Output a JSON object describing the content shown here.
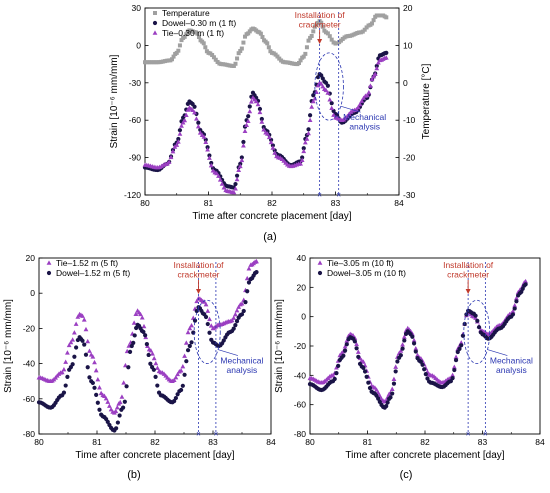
{
  "colors": {
    "temperature": "#a0a0a0",
    "dowel": "#1a1447",
    "tie": "#9b3fc2",
    "installation": "#c0392b",
    "mechanical": "#2a36b1"
  },
  "chart_data": [
    {
      "panel": "(a)",
      "type": "line",
      "xlabel": "Time after concrete placement [day]",
      "ylabel": "Strain [10⁻⁶ mm/mm]",
      "y2label": "Temperature [°C]",
      "xlim": [
        80,
        84
      ],
      "ylim": [
        -120,
        30
      ],
      "y2lim": [
        -30,
        20
      ],
      "xticks": [
        "80",
        "81",
        "82",
        "83",
        "84"
      ],
      "yticks": [
        "-120",
        "-90",
        "-60",
        "-30",
        "0",
        "30"
      ],
      "y2ticks": [
        "-30",
        "-20",
        "-10",
        "0",
        "10",
        "20"
      ],
      "legend": "top-left",
      "annotations": {
        "installation": "Installation of\ncrackmeter",
        "mechanical": "Mechanical\nanalysis"
      },
      "marker_lines_x": [
        82.75,
        83.05
      ],
      "series": [
        {
          "name": "Temperature",
          "axis": "right",
          "color": "#a0a0a0",
          "marker": "square",
          "x": [
            80.0,
            80.2,
            80.4,
            80.5,
            80.6,
            80.7,
            80.8,
            80.9,
            81.0,
            81.2,
            81.4,
            81.5,
            81.6,
            81.7,
            81.8,
            81.9,
            82.0,
            82.2,
            82.4,
            82.5,
            82.6,
            82.7,
            82.75,
            82.85,
            83.0,
            83.2,
            83.4,
            83.55,
            83.65,
            83.75,
            83.8
          ],
          "y": [
            5.5,
            5.5,
            6.0,
            8.0,
            12.0,
            14.0,
            13.5,
            11.0,
            8.0,
            5.0,
            4.5,
            8.5,
            13.0,
            14.5,
            13.5,
            11.0,
            8.0,
            5.5,
            5.0,
            7.0,
            12.0,
            15.5,
            16.5,
            13.5,
            10.5,
            12.5,
            13.5,
            15.5,
            18.0,
            18.0,
            17.5
          ]
        },
        {
          "name": "Dowel–0.30 m (1 ft)",
          "axis": "left",
          "color": "#1a1447",
          "marker": "circle",
          "x": [
            80.0,
            80.2,
            80.35,
            80.5,
            80.6,
            80.7,
            80.75,
            80.9,
            81.1,
            81.3,
            81.4,
            81.5,
            81.6,
            81.7,
            81.75,
            81.9,
            82.1,
            82.3,
            82.45,
            82.55,
            82.65,
            82.75,
            82.85,
            83.0,
            83.1,
            83.3,
            83.5,
            83.6,
            83.7,
            83.8
          ],
          "y": [
            -98,
            -100,
            -95,
            -78,
            -58,
            -45,
            -47,
            -70,
            -100,
            -113,
            -114,
            -95,
            -60,
            -38,
            -42,
            -68,
            -88,
            -96,
            -93,
            -72,
            -40,
            -23,
            -30,
            -55,
            -62,
            -54,
            -42,
            -25,
            -8,
            -6
          ]
        },
        {
          "name": "Tie–0.30 m (1 ft)",
          "axis": "left",
          "color": "#9b3fc2",
          "marker": "triangle",
          "x": [
            80.0,
            80.2,
            80.35,
            80.5,
            80.6,
            80.7,
            80.75,
            80.9,
            81.1,
            81.3,
            81.4,
            81.5,
            81.6,
            81.7,
            81.75,
            81.9,
            82.1,
            82.3,
            82.45,
            82.55,
            82.65,
            82.75,
            82.85,
            83.0,
            83.1,
            83.3,
            83.5,
            83.6,
            83.7,
            83.8
          ],
          "y": [
            -96,
            -98,
            -95,
            -80,
            -62,
            -50,
            -52,
            -72,
            -102,
            -117,
            -118,
            -97,
            -64,
            -42,
            -45,
            -70,
            -90,
            -97,
            -95,
            -75,
            -45,
            -30,
            -36,
            -58,
            -60,
            -52,
            -40,
            -25,
            -12,
            -10
          ]
        }
      ]
    },
    {
      "panel": "(b)",
      "type": "line",
      "xlabel": "Time after concrete placement [day]",
      "ylabel": "Strain [10⁻⁶ mm/mm]",
      "xlim": [
        80,
        84
      ],
      "ylim": [
        -80,
        20
      ],
      "xticks": [
        "80",
        "81",
        "82",
        "83",
        "84"
      ],
      "yticks": [
        "-80",
        "-60",
        "-40",
        "-20",
        "0",
        "20"
      ],
      "legend": "top-left",
      "annotations": {
        "installation": "Installation of\ncrackmeter",
        "mechanical": "Mechanical\nanalysis"
      },
      "marker_lines_x": [
        82.75,
        83.05
      ],
      "series": [
        {
          "name": "Tie–1.52 m (5 ft)",
          "color": "#9b3fc2",
          "marker": "triangle",
          "x": [
            80.0,
            80.2,
            80.4,
            80.55,
            80.7,
            80.75,
            80.9,
            81.1,
            81.3,
            81.4,
            81.55,
            81.7,
            81.75,
            81.9,
            82.1,
            82.3,
            82.45,
            82.6,
            82.75,
            82.85,
            83.0,
            83.1,
            83.3,
            83.5,
            83.65,
            83.75
          ],
          "y": [
            -48,
            -50,
            -45,
            -28,
            -12,
            -13,
            -35,
            -58,
            -68,
            -62,
            -30,
            -10,
            -12,
            -32,
            -45,
            -50,
            -44,
            -20,
            -3,
            -5,
            -20,
            -18,
            -16,
            -6,
            16,
            18
          ]
        },
        {
          "name": "Dowel–1.52 m (5 ft)",
          "color": "#1a1447",
          "marker": "circle",
          "x": [
            80.0,
            80.2,
            80.4,
            80.55,
            80.7,
            80.75,
            80.9,
            81.1,
            81.3,
            81.45,
            81.6,
            81.7,
            81.8,
            81.95,
            82.1,
            82.3,
            82.45,
            82.6,
            82.75,
            82.85,
            83.0,
            83.1,
            83.3,
            83.5,
            83.65,
            83.75
          ],
          "y": [
            -62,
            -65,
            -58,
            -42,
            -25,
            -27,
            -50,
            -70,
            -78,
            -65,
            -30,
            -18,
            -22,
            -42,
            -58,
            -62,
            -55,
            -30,
            -8,
            -12,
            -28,
            -30,
            -22,
            -12,
            8,
            12
          ]
        }
      ]
    },
    {
      "panel": "(c)",
      "type": "line",
      "xlabel": "Time after concrete placement [day]",
      "ylabel": "Strain [10⁻⁶ mm/mm]",
      "xlim": [
        80,
        84
      ],
      "ylim": [
        -80,
        40
      ],
      "xticks": [
        "80",
        "81",
        "82",
        "83",
        "84"
      ],
      "yticks": [
        "-80",
        "-60",
        "-40",
        "-20",
        "0",
        "20",
        "40"
      ],
      "legend": "top-left",
      "annotations": {
        "installation": "Installation of\ncrackmeter",
        "mechanical": "Mechanical\nanalysis"
      },
      "marker_lines_x": [
        82.75,
        83.05
      ],
      "series": [
        {
          "name": "Tie–3.05 m (10 ft)",
          "color": "#9b3fc2",
          "marker": "triangle",
          "x": [
            80.0,
            80.2,
            80.4,
            80.55,
            80.7,
            80.75,
            80.9,
            81.1,
            81.3,
            81.4,
            81.55,
            81.7,
            81.75,
            81.9,
            82.1,
            82.3,
            82.45,
            82.6,
            82.75,
            82.85,
            83.0,
            83.1,
            83.3,
            83.5,
            83.65,
            83.75
          ],
          "y": [
            -42,
            -45,
            -40,
            -25,
            -12,
            -13,
            -30,
            -48,
            -58,
            -52,
            -25,
            -8,
            -10,
            -28,
            -40,
            -45,
            -42,
            -20,
            3,
            0,
            -10,
            -12,
            -6,
            2,
            18,
            24
          ]
        },
        {
          "name": "Dowel–3.05 m (10 ft)",
          "color": "#1a1447",
          "marker": "circle",
          "x": [
            80.0,
            80.2,
            80.4,
            80.55,
            80.7,
            80.75,
            80.9,
            81.1,
            81.3,
            81.4,
            81.55,
            81.7,
            81.75,
            81.9,
            82.1,
            82.3,
            82.45,
            82.6,
            82.75,
            82.85,
            83.0,
            83.1,
            83.3,
            83.5,
            83.65,
            83.75
          ],
          "y": [
            -46,
            -50,
            -44,
            -28,
            -14,
            -15,
            -34,
            -52,
            -62,
            -55,
            -28,
            -10,
            -12,
            -30,
            -45,
            -48,
            -44,
            -22,
            4,
            2,
            -12,
            -15,
            -8,
            0,
            16,
            22
          ]
        }
      ]
    }
  ]
}
